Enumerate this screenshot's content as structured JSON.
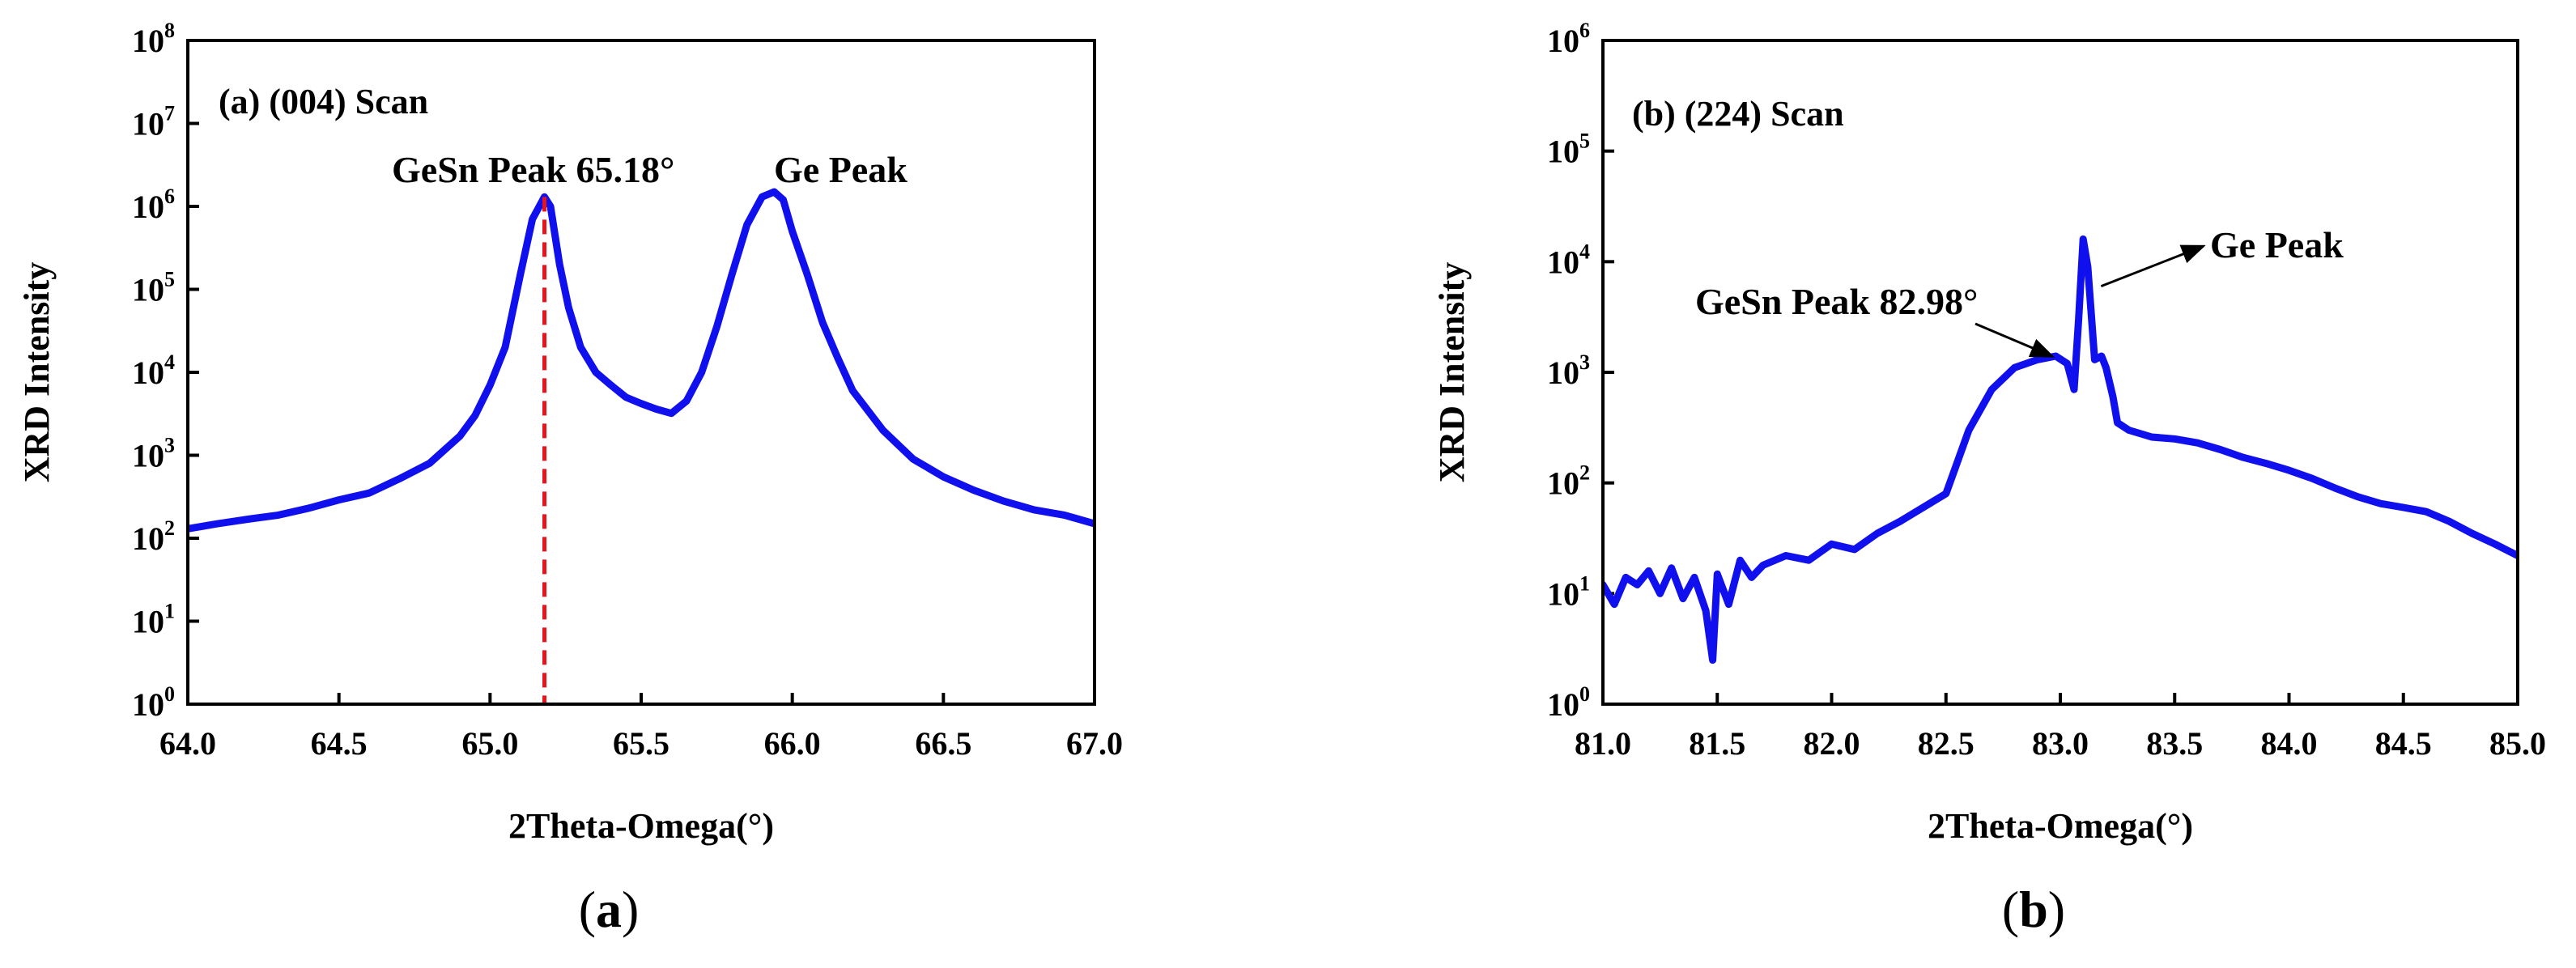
{
  "chart_data": [
    {
      "type": "line",
      "id": "a",
      "panel_label": "(a) (004) Scan",
      "xlabel": "2Theta-Omega(°)",
      "ylabel": "XRD Intensity",
      "xlim": [
        64.0,
        67.0
      ],
      "ylim_exp": [
        0,
        8
      ],
      "yscale": "log",
      "x_ticks": [
        "64.0",
        "64.5",
        "65.0",
        "65.5",
        "66.0",
        "66.5",
        "67.0"
      ],
      "y_ticks": [
        {
          "base": "10",
          "exp": "0"
        },
        {
          "base": "10",
          "exp": "1"
        },
        {
          "base": "10",
          "exp": "2"
        },
        {
          "base": "10",
          "exp": "3"
        },
        {
          "base": "10",
          "exp": "4"
        },
        {
          "base": "10",
          "exp": "5"
        },
        {
          "base": "10",
          "exp": "6"
        },
        {
          "base": "10",
          "exp": "7"
        },
        {
          "base": "10",
          "exp": "8"
        }
      ],
      "series_color": "#1010EE",
      "reference_line": {
        "x": 65.18,
        "color": "#E8141C",
        "style": "dashed"
      },
      "annotations": [
        {
          "text": "GeSn Peak 65.18°"
        },
        {
          "text": "Ge Peak"
        }
      ],
      "caption_letter": "a",
      "series": [
        {
          "name": "(004) scan",
          "x": [
            64.0,
            64.1,
            64.2,
            64.3,
            64.4,
            64.5,
            64.6,
            64.7,
            64.8,
            64.9,
            64.95,
            65.0,
            65.05,
            65.1,
            65.14,
            65.18,
            65.2,
            65.23,
            65.26,
            65.3,
            65.35,
            65.4,
            65.45,
            65.5,
            65.55,
            65.6,
            65.65,
            65.7,
            65.75,
            65.8,
            65.85,
            65.9,
            65.94,
            65.97,
            66.0,
            66.05,
            66.1,
            66.15,
            66.2,
            66.3,
            66.4,
            66.5,
            66.6,
            66.7,
            66.8,
            66.9,
            67.0
          ],
          "y": [
            130,
            150,
            170,
            190,
            230,
            290,
            350,
            520,
            800,
            1700,
            3000,
            7000,
            20000,
            150000,
            700000,
            1300000,
            1000000,
            200000,
            60000,
            20000,
            10000,
            7000,
            5000,
            4200,
            3600,
            3200,
            4500,
            10000,
            35000,
            150000,
            600000,
            1300000,
            1500000,
            1200000,
            500000,
            150000,
            40000,
            15000,
            6000,
            2000,
            900,
            550,
            380,
            280,
            220,
            190,
            150
          ]
        }
      ]
    },
    {
      "type": "line",
      "id": "b",
      "panel_label": "(b) (224) Scan",
      "xlabel": "2Theta-Omega(°)",
      "ylabel": "XRD Intensity",
      "xlim": [
        81.0,
        85.0
      ],
      "ylim_exp": [
        0,
        6
      ],
      "yscale": "log",
      "x_ticks": [
        "81.0",
        "81.5",
        "82.0",
        "82.5",
        "83.0",
        "83.5",
        "84.0",
        "84.5",
        "85.0"
      ],
      "y_ticks": [
        {
          "base": "10",
          "exp": "0"
        },
        {
          "base": "10",
          "exp": "1"
        },
        {
          "base": "10",
          "exp": "2"
        },
        {
          "base": "10",
          "exp": "3"
        },
        {
          "base": "10",
          "exp": "4"
        },
        {
          "base": "10",
          "exp": "5"
        },
        {
          "base": "10",
          "exp": "6"
        }
      ],
      "series_color": "#1010EE",
      "annotations": [
        {
          "text": "GeSn Peak 82.98°",
          "target_x": 82.98,
          "target_y": 1300
        },
        {
          "text": "Ge Peak",
          "target_x": 83.15,
          "target_y": 6000
        }
      ],
      "caption_letter": "b",
      "series": [
        {
          "name": "(224) scan",
          "x": [
            81.0,
            81.05,
            81.1,
            81.15,
            81.2,
            81.25,
            81.3,
            81.35,
            81.4,
            81.45,
            81.48,
            81.5,
            81.55,
            81.6,
            81.65,
            81.7,
            81.8,
            81.9,
            82.0,
            82.1,
            82.2,
            82.3,
            82.4,
            82.5,
            82.6,
            82.7,
            82.8,
            82.9,
            82.98,
            83.03,
            83.06,
            83.08,
            83.1,
            83.12,
            83.15,
            83.18,
            83.2,
            83.23,
            83.25,
            83.3,
            83.4,
            83.5,
            83.6,
            83.7,
            83.8,
            83.9,
            84.0,
            84.1,
            84.2,
            84.3,
            84.4,
            84.5,
            84.6,
            84.7,
            84.8,
            84.9,
            85.0
          ],
          "y": [
            12,
            8,
            14,
            12,
            16,
            10,
            17,
            9,
            14,
            7,
            2.5,
            15,
            8,
            20,
            14,
            18,
            22,
            20,
            28,
            25,
            35,
            45,
            60,
            80,
            300,
            700,
            1100,
            1300,
            1400,
            1200,
            700,
            3000,
            16000,
            9000,
            1300,
            1400,
            1100,
            600,
            350,
            300,
            260,
            250,
            230,
            200,
            170,
            150,
            130,
            110,
            90,
            75,
            65,
            60,
            55,
            45,
            35,
            28,
            22
          ]
        }
      ]
    }
  ]
}
